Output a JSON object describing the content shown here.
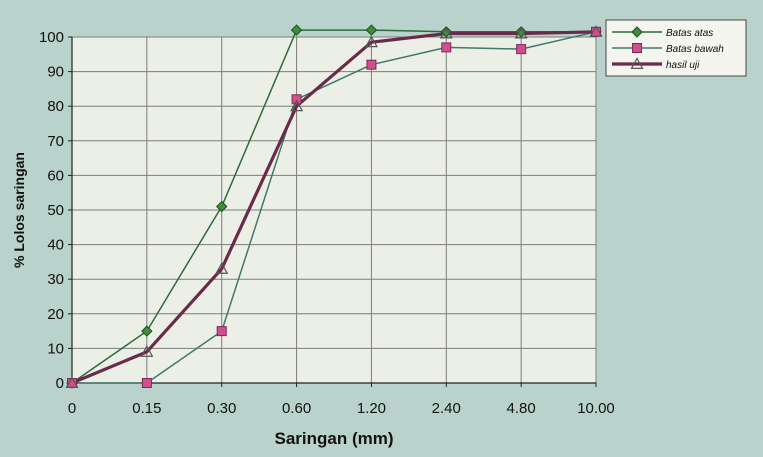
{
  "chart_data": {
    "type": "line",
    "title": "",
    "xlabel": "Saringan  (mm)",
    "ylabel": "% Lolos saringan",
    "categories": [
      "0",
      "0.15",
      "0.30",
      "0.60",
      "1.20",
      "2.40",
      "4.80",
      "10.00"
    ],
    "ylim": [
      0,
      100
    ],
    "yticks": [
      "0",
      "10",
      "20",
      "30",
      "40",
      "50",
      "60",
      "70",
      "80",
      "90",
      "100"
    ],
    "grid": true,
    "legend_position": "top-right",
    "series": [
      {
        "name": "Batas atas",
        "marker": "diamond",
        "color": "#2f6b3a",
        "values": [
          0,
          15,
          51,
          102,
          102,
          101.5,
          101.5,
          101.5
        ]
      },
      {
        "name": "Batas bawah",
        "marker": "square",
        "color": "#3f7a6a",
        "values": [
          0,
          0,
          15,
          82,
          92,
          97,
          96.5,
          101.5
        ]
      },
      {
        "name": "hasil uji",
        "marker": "triangle",
        "color": "#6a2a4a",
        "values": [
          0,
          9,
          33,
          80,
          98.5,
          101,
          101,
          101.5
        ]
      }
    ],
    "colors": {
      "plot_bg": "#ecefe6",
      "page_bg": "#b9d3cc",
      "grid": "#7d7d7d",
      "marker_green": "#3f8f3a",
      "marker_pink": "#cf4f8f"
    }
  }
}
